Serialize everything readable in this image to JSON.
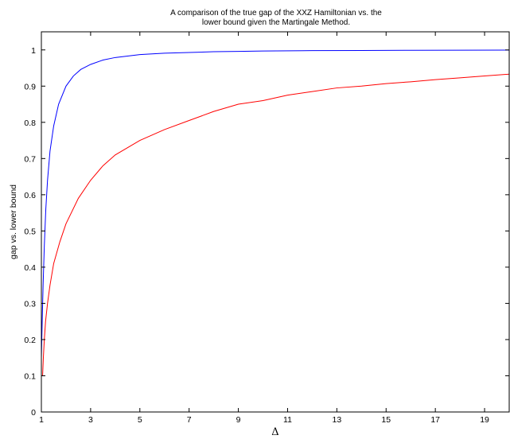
{
  "chart_data": {
    "type": "line",
    "title_lines": [
      "A comparison of the true gap of the XXZ Hamiltonian vs. the",
      "lower bound given the Martingale Method."
    ],
    "xlabel": "Δ",
    "ylabel": "gap  vs. lower bound",
    "xlim": [
      1,
      20
    ],
    "ylim": [
      0,
      1.05
    ],
    "x_ticks": [
      1,
      3,
      5,
      7,
      9,
      11,
      13,
      15,
      17,
      19
    ],
    "y_ticks": [
      0,
      0.1,
      0.2,
      0.3,
      0.4,
      0.5,
      0.6,
      0.7,
      0.8,
      0.9,
      1
    ],
    "x_tick_labels": [
      "1",
      "3",
      "5",
      "7",
      "9",
      "11",
      "13",
      "15",
      "17",
      "19"
    ],
    "y_tick_labels": [
      "0",
      "0.1",
      "0.2",
      "0.3",
      "0.4",
      "0.5",
      "0.6",
      "0.7",
      "0.8",
      "0.9",
      "1"
    ],
    "grid": false,
    "series": [
      {
        "color": "#0000ff",
        "x": [
          1,
          1.03,
          1.07,
          1.12,
          1.18,
          1.25,
          1.35,
          1.5,
          1.7,
          2,
          2.3,
          2.6,
          3,
          3.5,
          4,
          5,
          6,
          7,
          8,
          9,
          10,
          12,
          14,
          16,
          18,
          20
        ],
        "y": [
          0.15,
          0.24,
          0.35,
          0.46,
          0.56,
          0.64,
          0.72,
          0.79,
          0.85,
          0.9,
          0.928,
          0.946,
          0.96,
          0.972,
          0.979,
          0.987,
          0.991,
          0.993,
          0.995,
          0.996,
          0.997,
          0.998,
          0.9985,
          0.999,
          0.9993,
          0.9995
        ]
      },
      {
        "color": "#ff0000",
        "x": [
          1.05,
          1.08,
          1.12,
          1.17,
          1.25,
          1.35,
          1.5,
          1.75,
          2,
          2.5,
          3,
          3.5,
          4,
          5,
          6,
          7,
          8,
          9,
          10,
          11,
          12,
          13,
          14,
          15,
          16,
          17,
          18,
          19,
          20
        ],
        "y": [
          0.1,
          0.15,
          0.2,
          0.25,
          0.3,
          0.35,
          0.41,
          0.47,
          0.52,
          0.59,
          0.64,
          0.68,
          0.71,
          0.75,
          0.78,
          0.805,
          0.83,
          0.85,
          0.86,
          0.875,
          0.885,
          0.895,
          0.9,
          0.907,
          0.912,
          0.918,
          0.923,
          0.928,
          0.933
        ]
      }
    ]
  }
}
